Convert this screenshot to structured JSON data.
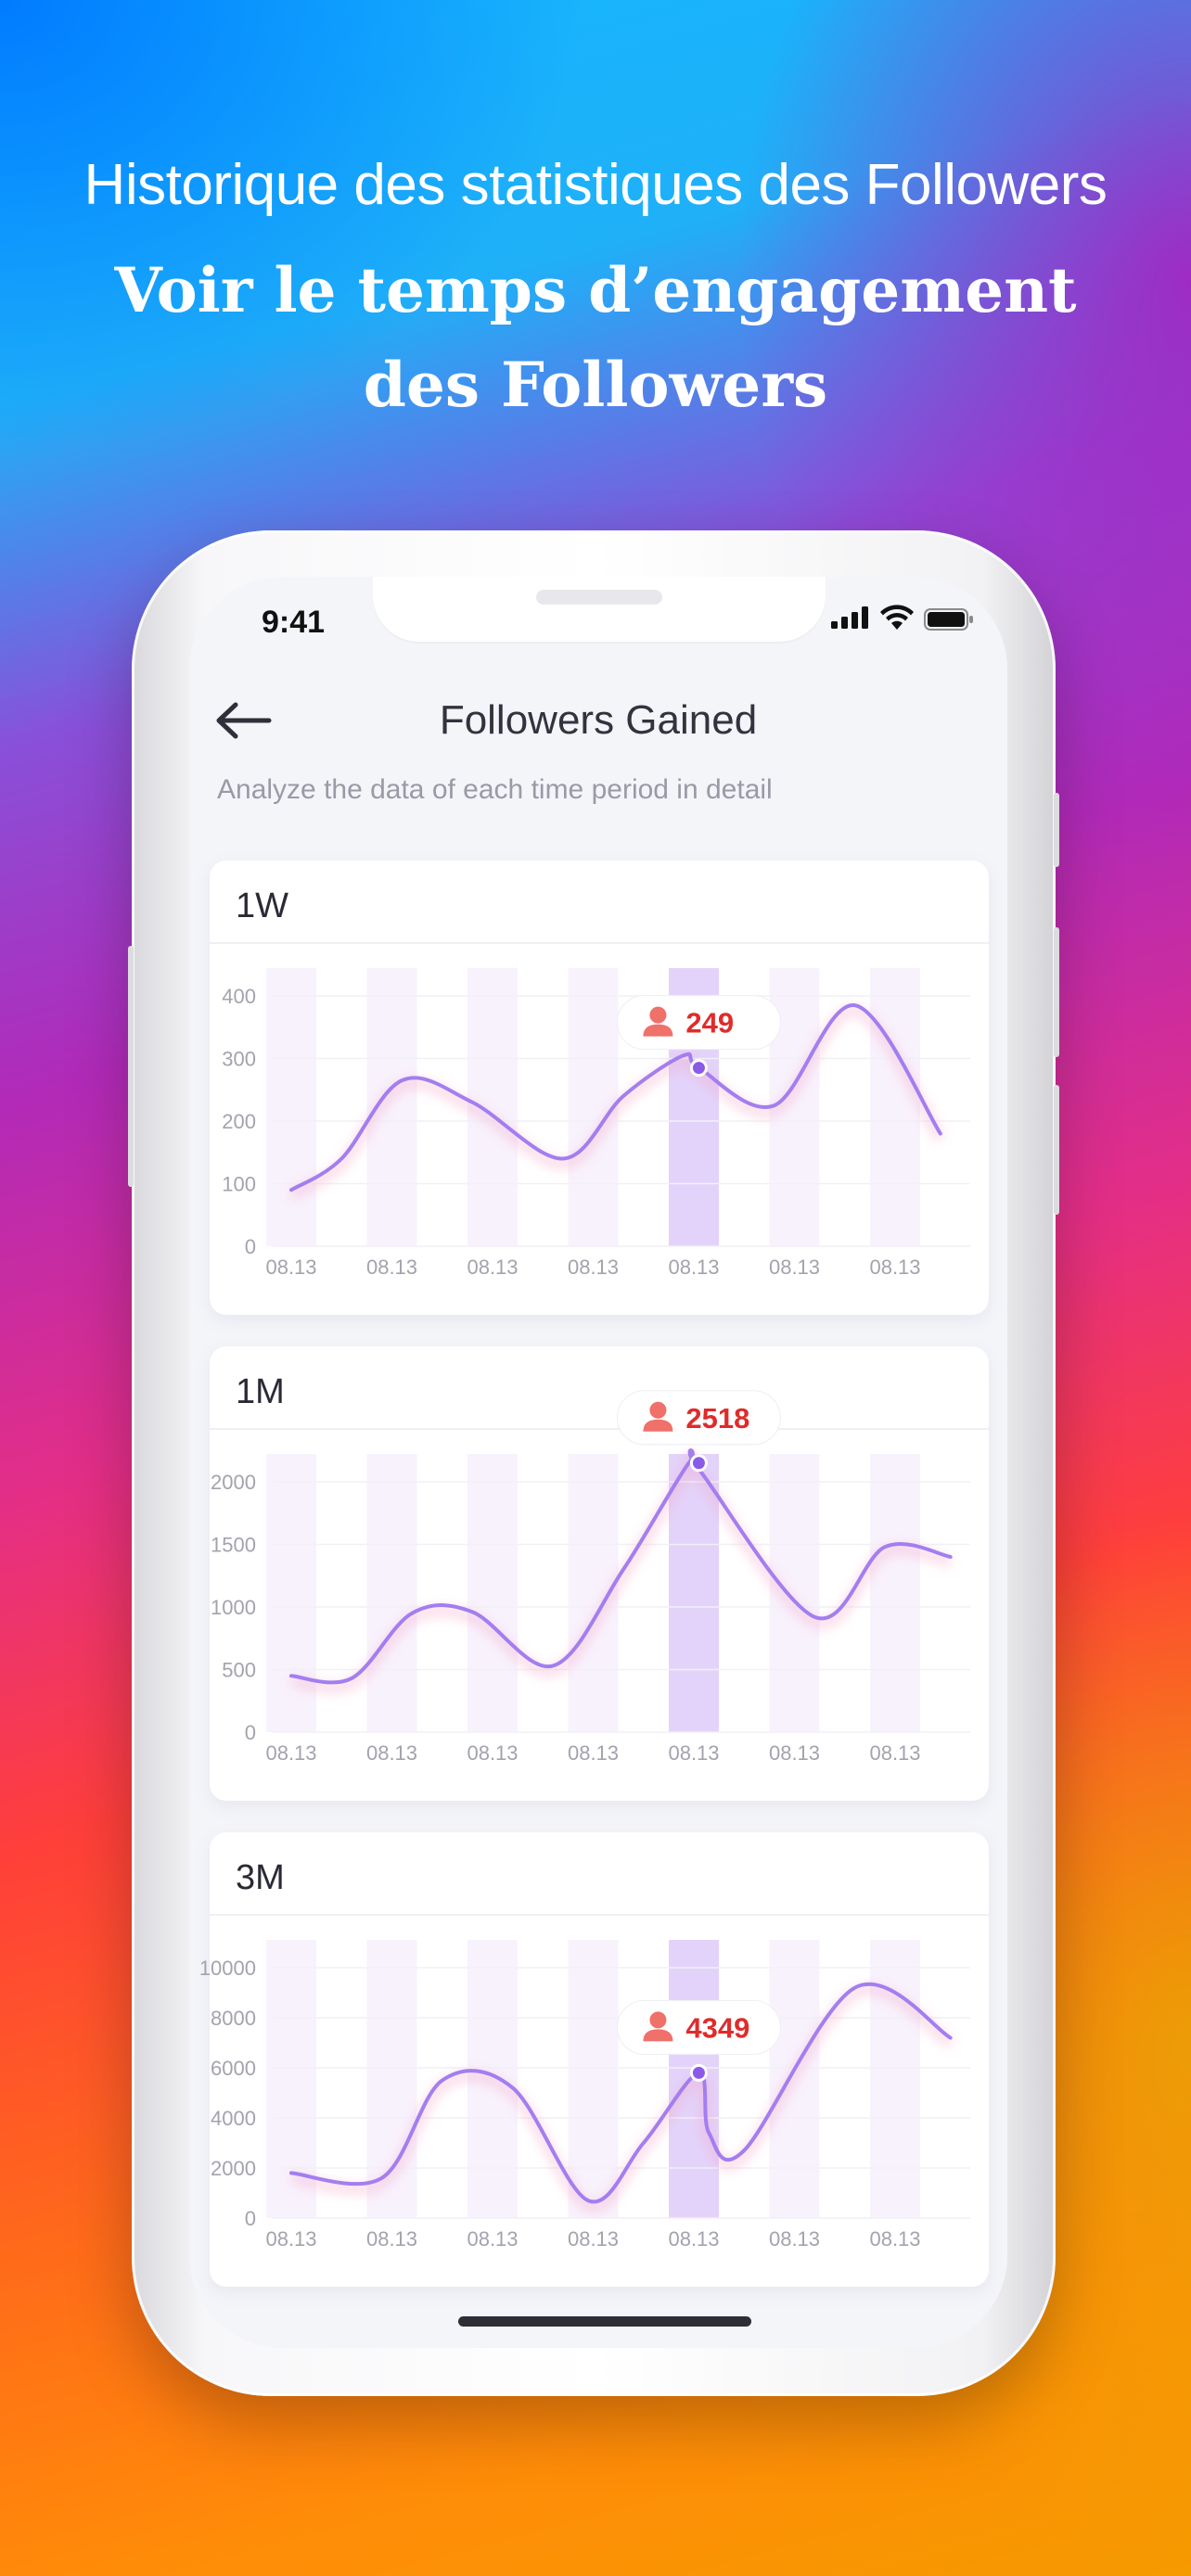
{
  "headline": {
    "line1": "Historique des statistiques des Followers",
    "line2": "Voir le temps d’engagement",
    "line3": "des Followers"
  },
  "status": {
    "time": "9:41"
  },
  "screen": {
    "title": "Followers Gained",
    "subtitle": "Analyze the data of each time period in detail"
  },
  "colors": {
    "line": "#a37ef0",
    "highlight_bar": "#e3d3fa",
    "bar": "#f8f2fd",
    "badge_text": "#e02b2b",
    "badge_icon": "#f0706a"
  },
  "chart_data": [
    {
      "type": "line",
      "title": "1W",
      "categories": [
        "08.13",
        "08.13",
        "08.13",
        "08.13",
        "08.13",
        "08.13",
        "08.13"
      ],
      "yticks": [
        "0",
        "100",
        "200",
        "300",
        "400"
      ],
      "ylim": [
        0,
        400
      ],
      "values": [
        90,
        140,
        265,
        230,
        140,
        240,
        305,
        285,
        225,
        385,
        180
      ],
      "x": [
        0,
        0.5,
        1.1,
        1.8,
        2.7,
        3.3,
        3.9,
        4.05,
        4.8,
        5.6,
        6.45
      ],
      "highlight_index": 4,
      "badge": {
        "value": "249",
        "x": 4.05,
        "y": 285
      }
    },
    {
      "type": "line",
      "title": "1M",
      "categories": [
        "08.13",
        "08.13",
        "08.13",
        "08.13",
        "08.13",
        "08.13",
        "08.13"
      ],
      "yticks": [
        "0",
        "500",
        "1000",
        "1500",
        "2000"
      ],
      "ylim": [
        0,
        2000
      ],
      "values": [
        450,
        430,
        950,
        960,
        530,
        1300,
        2150,
        2100,
        920,
        1480,
        1400
      ],
      "x": [
        0,
        0.6,
        1.2,
        1.8,
        2.6,
        3.3,
        3.95,
        4.05,
        5.2,
        5.9,
        6.55
      ],
      "highlight_index": 4,
      "badge": {
        "value": "2518",
        "x": 4.05,
        "y": 2150
      }
    },
    {
      "type": "line",
      "title": "3M",
      "categories": [
        "08.13",
        "08.13",
        "08.13",
        "08.13",
        "08.13",
        "08.13",
        "08.13"
      ],
      "yticks": [
        "0",
        "2000",
        "4000",
        "6000",
        "8000",
        "10000"
      ],
      "ylim": [
        0,
        10000
      ],
      "values": [
        1800,
        1600,
        5500,
        5200,
        700,
        3000,
        5800,
        3400,
        2700,
        9200,
        7200
      ],
      "x": [
        0,
        0.9,
        1.5,
        2.2,
        2.95,
        3.5,
        4.05,
        4.15,
        4.5,
        5.6,
        6.55
      ],
      "highlight_index": 4,
      "badge": {
        "value": "4349",
        "x": 4.05,
        "y": 5800
      }
    }
  ]
}
